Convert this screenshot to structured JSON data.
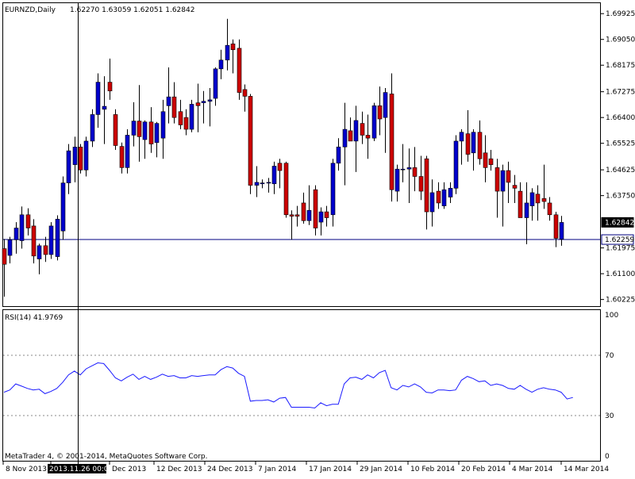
{
  "header": {
    "symbol_text": "EURNZD,Daily",
    "ohlc_text": "1.62270 1.63059 1.62051 1.62842"
  },
  "indicator": {
    "label_text": "RSI(14) 41.9769"
  },
  "footer": {
    "copyright_text": "MetaTrader 4, © 2001-2014, MetaQuotes Software Corp."
  },
  "crosshair": {
    "date_label": "2013.11.26 00:00"
  },
  "colors": {
    "bull": "#0000cc",
    "bear": "#cc0000",
    "rsi_line": "#1a1aff",
    "level_line": "#000080",
    "price_tag_bg": "#000000"
  },
  "chart_data": [
    {
      "type": "candlestick",
      "title": "EURNZD,Daily",
      "ylim": [
        1.6,
        1.7028
      ],
      "y_ticks": [
        "1.69925",
        "1.69050",
        "1.68175",
        "1.67275",
        "1.66400",
        "1.65525",
        "1.64625",
        "1.63750",
        "1.62842",
        "1.61975",
        "1.61100",
        "1.60225"
      ],
      "price_tags": [
        {
          "label": "1.62842",
          "value": 1.62842,
          "style": "filled"
        },
        {
          "label": "1.62259",
          "value": 1.62259,
          "style": "outline"
        }
      ],
      "horizontal_line": 1.62259,
      "x_labels": [
        "8 Nov 2013",
        "2013.11.26 00:00",
        "Dec 2013",
        "12 Dec 2013",
        "24 Dec 2013",
        "7 Jan 2014",
        "17 Jan 2014",
        "29 Jan 2014",
        "10 Feb 2014",
        "20 Feb 2014",
        "4 Mar 2014",
        "14 Mar 2014"
      ],
      "candles": [
        {
          "o": 1.6195,
          "h": 1.6228,
          "l": 1.6032,
          "c": 1.6142
        },
        {
          "o": 1.6172,
          "h": 1.6235,
          "l": 1.6145,
          "c": 1.6225
        },
        {
          "o": 1.6225,
          "h": 1.6285,
          "l": 1.6178,
          "c": 1.6265
        },
        {
          "o": 1.6222,
          "h": 1.6338,
          "l": 1.6195,
          "c": 1.631
        },
        {
          "o": 1.631,
          "h": 1.6332,
          "l": 1.624,
          "c": 1.6265
        },
        {
          "o": 1.6272,
          "h": 1.6295,
          "l": 1.6145,
          "c": 1.617
        },
        {
          "o": 1.616,
          "h": 1.6212,
          "l": 1.6108,
          "c": 1.6205
        },
        {
          "o": 1.6205,
          "h": 1.6235,
          "l": 1.615,
          "c": 1.6175
        },
        {
          "o": 1.6175,
          "h": 1.6285,
          "l": 1.616,
          "c": 1.6272
        },
        {
          "o": 1.6168,
          "h": 1.6308,
          "l": 1.6155,
          "c": 1.6295
        },
        {
          "o": 1.6255,
          "h": 1.644,
          "l": 1.6225,
          "c": 1.6418
        },
        {
          "o": 1.6418,
          "h": 1.655,
          "l": 1.638,
          "c": 1.6527
        },
        {
          "o": 1.648,
          "h": 1.6575,
          "l": 1.642,
          "c": 1.654
        },
        {
          "o": 1.654,
          "h": 1.655,
          "l": 1.645,
          "c": 1.6462
        },
        {
          "o": 1.6462,
          "h": 1.6575,
          "l": 1.644,
          "c": 1.656
        },
        {
          "o": 1.656,
          "h": 1.6668,
          "l": 1.654,
          "c": 1.665
        },
        {
          "o": 1.665,
          "h": 1.679,
          "l": 1.6605,
          "c": 1.676
        },
        {
          "o": 1.6668,
          "h": 1.678,
          "l": 1.655,
          "c": 1.6678
        },
        {
          "o": 1.676,
          "h": 1.684,
          "l": 1.67,
          "c": 1.673
        },
        {
          "o": 1.665,
          "h": 1.6668,
          "l": 1.653,
          "c": 1.6545
        },
        {
          "o": 1.6542,
          "h": 1.6555,
          "l": 1.645,
          "c": 1.647
        },
        {
          "o": 1.647,
          "h": 1.66,
          "l": 1.645,
          "c": 1.658
        },
        {
          "o": 1.658,
          "h": 1.6692,
          "l": 1.6542,
          "c": 1.6628
        },
        {
          "o": 1.6628,
          "h": 1.675,
          "l": 1.649,
          "c": 1.6575
        },
        {
          "o": 1.6565,
          "h": 1.663,
          "l": 1.65,
          "c": 1.6625
        },
        {
          "o": 1.6625,
          "h": 1.6675,
          "l": 1.652,
          "c": 1.655
        },
        {
          "o": 1.6555,
          "h": 1.6625,
          "l": 1.6505,
          "c": 1.662
        },
        {
          "o": 1.657,
          "h": 1.67,
          "l": 1.65,
          "c": 1.666
        },
        {
          "o": 1.668,
          "h": 1.681,
          "l": 1.662,
          "c": 1.671
        },
        {
          "o": 1.671,
          "h": 1.676,
          "l": 1.662,
          "c": 1.664
        },
        {
          "o": 1.666,
          "h": 1.67,
          "l": 1.66,
          "c": 1.6615
        },
        {
          "o": 1.664,
          "h": 1.6668,
          "l": 1.658,
          "c": 1.66
        },
        {
          "o": 1.66,
          "h": 1.67,
          "l": 1.659,
          "c": 1.6685
        },
        {
          "o": 1.669,
          "h": 1.6755,
          "l": 1.659,
          "c": 1.668
        },
        {
          "o": 1.669,
          "h": 1.673,
          "l": 1.662,
          "c": 1.6695
        },
        {
          "o": 1.6695,
          "h": 1.674,
          "l": 1.661,
          "c": 1.67
        },
        {
          "o": 1.6705,
          "h": 1.681,
          "l": 1.668,
          "c": 1.6805
        },
        {
          "o": 1.6805,
          "h": 1.687,
          "l": 1.677,
          "c": 1.6835
        },
        {
          "o": 1.6835,
          "h": 1.6975,
          "l": 1.68,
          "c": 1.6885
        },
        {
          "o": 1.689,
          "h": 1.6905,
          "l": 1.679,
          "c": 1.687
        },
        {
          "o": 1.6875,
          "h": 1.6905,
          "l": 1.67,
          "c": 1.6725
        },
        {
          "o": 1.6735,
          "h": 1.6752,
          "l": 1.666,
          "c": 1.6712
        },
        {
          "o": 1.6712,
          "h": 1.672,
          "l": 1.638,
          "c": 1.641
        },
        {
          "o": 1.641,
          "h": 1.6475,
          "l": 1.637,
          "c": 1.642
        },
        {
          "o": 1.6415,
          "h": 1.643,
          "l": 1.64,
          "c": 1.6418
        },
        {
          "o": 1.6418,
          "h": 1.6435,
          "l": 1.6385,
          "c": 1.642
        },
        {
          "o": 1.6415,
          "h": 1.649,
          "l": 1.638,
          "c": 1.6475
        },
        {
          "o": 1.6485,
          "h": 1.65,
          "l": 1.64,
          "c": 1.646
        },
        {
          "o": 1.6485,
          "h": 1.649,
          "l": 1.63,
          "c": 1.631
        },
        {
          "o": 1.631,
          "h": 1.6325,
          "l": 1.6225,
          "c": 1.6305
        },
        {
          "o": 1.631,
          "h": 1.634,
          "l": 1.627,
          "c": 1.6305
        },
        {
          "o": 1.635,
          "h": 1.6385,
          "l": 1.628,
          "c": 1.629
        },
        {
          "o": 1.629,
          "h": 1.641,
          "l": 1.6275,
          "c": 1.6325
        },
        {
          "o": 1.6395,
          "h": 1.641,
          "l": 1.624,
          "c": 1.6265
        },
        {
          "o": 1.6285,
          "h": 1.6335,
          "l": 1.624,
          "c": 1.632
        },
        {
          "o": 1.632,
          "h": 1.634,
          "l": 1.627,
          "c": 1.63
        },
        {
          "o": 1.631,
          "h": 1.65,
          "l": 1.627,
          "c": 1.6485
        },
        {
          "o": 1.6485,
          "h": 1.657,
          "l": 1.646,
          "c": 1.654
        },
        {
          "o": 1.654,
          "h": 1.669,
          "l": 1.641,
          "c": 1.66
        },
        {
          "o": 1.6595,
          "h": 1.664,
          "l": 1.656,
          "c": 1.656
        },
        {
          "o": 1.656,
          "h": 1.668,
          "l": 1.6455,
          "c": 1.663
        },
        {
          "o": 1.662,
          "h": 1.666,
          "l": 1.655,
          "c": 1.658
        },
        {
          "o": 1.658,
          "h": 1.665,
          "l": 1.65,
          "c": 1.657
        },
        {
          "o": 1.657,
          "h": 1.669,
          "l": 1.656,
          "c": 1.668
        },
        {
          "o": 1.668,
          "h": 1.6745,
          "l": 1.658,
          "c": 1.6635
        },
        {
          "o": 1.664,
          "h": 1.674,
          "l": 1.652,
          "c": 1.6725
        },
        {
          "o": 1.672,
          "h": 1.679,
          "l": 1.6355,
          "c": 1.6395
        },
        {
          "o": 1.639,
          "h": 1.648,
          "l": 1.6355,
          "c": 1.6465
        },
        {
          "o": 1.6465,
          "h": 1.655,
          "l": 1.642,
          "c": 1.6465
        },
        {
          "o": 1.6465,
          "h": 1.6535,
          "l": 1.635,
          "c": 1.647
        },
        {
          "o": 1.647,
          "h": 1.654,
          "l": 1.639,
          "c": 1.644
        },
        {
          "o": 1.644,
          "h": 1.651,
          "l": 1.636,
          "c": 1.639
        },
        {
          "o": 1.65,
          "h": 1.651,
          "l": 1.626,
          "c": 1.632
        },
        {
          "o": 1.632,
          "h": 1.643,
          "l": 1.627,
          "c": 1.6385
        },
        {
          "o": 1.639,
          "h": 1.642,
          "l": 1.633,
          "c": 1.635
        },
        {
          "o": 1.634,
          "h": 1.642,
          "l": 1.633,
          "c": 1.6395
        },
        {
          "o": 1.637,
          "h": 1.642,
          "l": 1.635,
          "c": 1.64
        },
        {
          "o": 1.64,
          "h": 1.658,
          "l": 1.638,
          "c": 1.656
        },
        {
          "o": 1.656,
          "h": 1.66,
          "l": 1.648,
          "c": 1.659
        },
        {
          "o": 1.6585,
          "h": 1.6665,
          "l": 1.649,
          "c": 1.6515
        },
        {
          "o": 1.652,
          "h": 1.66,
          "l": 1.646,
          "c": 1.659
        },
        {
          "o": 1.659,
          "h": 1.663,
          "l": 1.648,
          "c": 1.65
        },
        {
          "o": 1.652,
          "h": 1.658,
          "l": 1.642,
          "c": 1.647
        },
        {
          "o": 1.65,
          "h": 1.653,
          "l": 1.646,
          "c": 1.648
        },
        {
          "o": 1.647,
          "h": 1.65,
          "l": 1.63,
          "c": 1.639
        },
        {
          "o": 1.639,
          "h": 1.648,
          "l": 1.627,
          "c": 1.646
        },
        {
          "o": 1.646,
          "h": 1.649,
          "l": 1.635,
          "c": 1.642
        },
        {
          "o": 1.641,
          "h": 1.6445,
          "l": 1.635,
          "c": 1.64
        },
        {
          "o": 1.639,
          "h": 1.642,
          "l": 1.63,
          "c": 1.63
        },
        {
          "o": 1.63,
          "h": 1.642,
          "l": 1.621,
          "c": 1.635
        },
        {
          "o": 1.634,
          "h": 1.64,
          "l": 1.629,
          "c": 1.6385
        },
        {
          "o": 1.638,
          "h": 1.641,
          "l": 1.629,
          "c": 1.635
        },
        {
          "o": 1.6365,
          "h": 1.648,
          "l": 1.633,
          "c": 1.6355
        },
        {
          "o": 1.635,
          "h": 1.637,
          "l": 1.629,
          "c": 1.631
        },
        {
          "o": 1.631,
          "h": 1.632,
          "l": 1.62,
          "c": 1.623
        },
        {
          "o": 1.6227,
          "h": 1.6306,
          "l": 1.6205,
          "c": 1.6284
        }
      ]
    },
    {
      "type": "line",
      "title": "RSI(14) 41.9769",
      "ylim": [
        0,
        100
      ],
      "y_ticks": [
        "100",
        "70",
        "30",
        "0"
      ],
      "levels": [
        70,
        30
      ],
      "values": [
        45.5,
        47.0,
        51.0,
        49.5,
        48.0,
        47.0,
        47.5,
        44.5,
        46.0,
        48.0,
        52.0,
        57.0,
        59.5,
        57.0,
        61.0,
        63.0,
        65.0,
        64.5,
        60.0,
        55.0,
        53.0,
        55.5,
        57.5,
        54.0,
        56.0,
        54.0,
        55.5,
        57.5,
        56.0,
        56.5,
        55.0,
        55.0,
        56.5,
        56.0,
        56.5,
        57.0,
        57.0,
        60.5,
        62.5,
        61.5,
        58.0,
        56.0,
        39.5,
        40.0,
        40.0,
        40.5,
        39.0,
        41.5,
        42.0,
        35.5,
        35.5,
        35.5,
        35.5,
        35.0,
        38.5,
        36.5,
        37.5,
        37.5,
        51.0,
        55.0,
        55.5,
        54.0,
        57.0,
        55.0,
        58.5,
        60.0,
        48.5,
        47.0,
        50.0,
        49.0,
        51.0,
        49.0,
        45.5,
        45.0,
        47.0,
        47.0,
        46.5,
        47.0,
        53.5,
        56.0,
        54.5,
        52.5,
        53.0,
        50.0,
        51.0,
        50.0,
        48.0,
        47.5,
        50.0,
        47.5,
        45.5,
        47.5,
        48.5,
        47.5,
        47.0,
        45.5,
        41.0,
        42.0
      ]
    }
  ]
}
